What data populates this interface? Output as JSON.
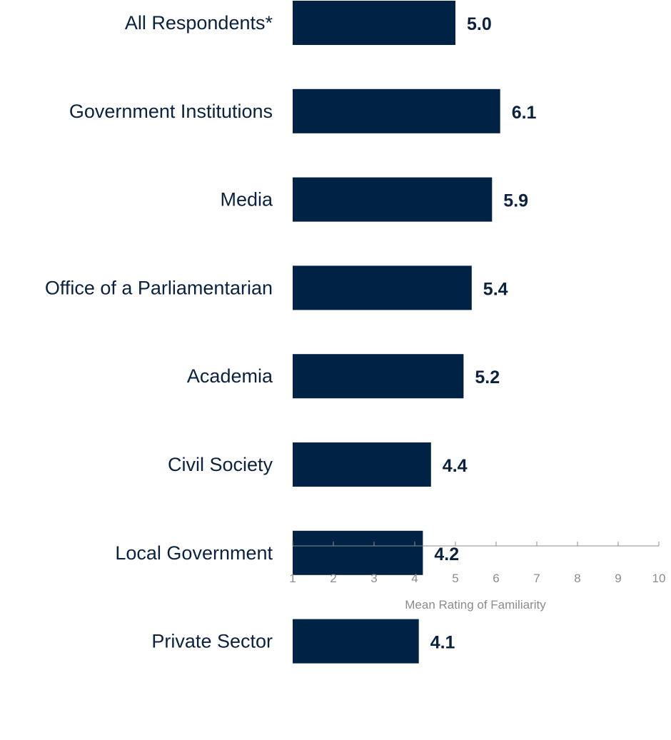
{
  "chart_data": {
    "type": "bar",
    "orientation": "horizontal",
    "categories": [
      "All Respondents*",
      "Government Institutions",
      "Media",
      "Office of a Parliamentarian",
      "Academia",
      "Civil Society",
      "Local Government",
      "Private Sector"
    ],
    "values": [
      5.0,
      6.1,
      5.9,
      5.4,
      5.2,
      4.4,
      4.2,
      4.1
    ],
    "value_labels": [
      "5.0",
      "6.1",
      "5.9",
      "5.4",
      "5.2",
      "4.4",
      "4.2",
      "4.1"
    ],
    "xlabel": "Mean Rating of Familiarity",
    "xlim": [
      1,
      10
    ],
    "xticks": [
      "1",
      "2",
      "3",
      "4",
      "5",
      "6",
      "7",
      "8",
      "9",
      "10"
    ],
    "grid": false,
    "legend": "none",
    "colors": {
      "bar": "#002244",
      "text": "#0a2240",
      "axis": "#8c8c8c"
    }
  }
}
